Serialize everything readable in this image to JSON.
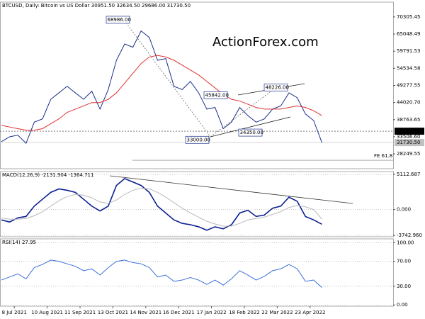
{
  "chart_data": [
    {
      "type": "line",
      "title": "BTCUSD, Daily:  Bitcoin vs US Dollar  30951.50 32634.50 29686.00 31730.50",
      "watermark": "ActionForex.com",
      "ylim": [
        23700,
        74850
      ],
      "yticks": [
        70305.45,
        65048.49,
        59791.53,
        54534.58,
        49277.55,
        {
          "value": 44020.7,
          "label": "44020.70"
        },
        38763.65,
        {
          "value": 33506.6,
          "label": "33506.60"
        },
        28249.55
      ],
      "series": [
        {
          "color": "#1a2f8a",
          "values": [
            32000,
            33500,
            34000,
            31500,
            38000,
            39000,
            45000,
            47000,
            49000,
            47000,
            45000,
            47500,
            42000,
            48000,
            57000,
            62000,
            61000,
            66000,
            64000,
            57000,
            57500,
            49000,
            48000,
            50500,
            47000,
            42000,
            42500,
            36000,
            38000,
            42500,
            40000,
            38000,
            39000,
            42000,
            43000,
            47000,
            45500,
            40500,
            38500,
            31730.5
          ]
        },
        {
          "color": "#e03030",
          "values": [
            37000,
            36500,
            36000,
            35500,
            35500,
            36000,
            37500,
            39000,
            41000,
            42000,
            43000,
            44000,
            44000,
            45000,
            47000,
            50000,
            53000,
            56000,
            58000,
            58500,
            58000,
            57000,
            55500,
            54000,
            52500,
            50500,
            48500,
            46500,
            45000,
            44500,
            43500,
            42500,
            42000,
            42000,
            42000,
            42500,
            43000,
            42500,
            41500,
            40000
          ]
        }
      ],
      "annotations": [
        {
          "value": 68986,
          "label": "68986.00"
        },
        {
          "value": 45842,
          "label": "45842.00"
        },
        {
          "value": 48226,
          "label": "48226.00"
        },
        {
          "value": 33000,
          "label": "33000.00"
        },
        {
          "value": 34350,
          "label": "34350.00"
        }
      ],
      "level_line": {
        "value": 35224,
        "label": "35224.00"
      },
      "last_price": {
        "value": 31730.5,
        "label": "31730.50"
      },
      "fe_line": {
        "value": 26300,
        "label": "FE 61.8"
      }
    },
    {
      "type": "line",
      "title": "MACD(12,26,9) -2131.904 -1364.711",
      "ylim": [
        -3950,
        5520
      ],
      "grid": true,
      "yticks": [
        5112.687,
        {
          "value": 0,
          "label": "0.000"
        },
        {
          "value": -3742.96,
          "label": "-3742.960"
        }
      ],
      "series": [
        {
          "color": "#0a1f8f",
          "values": [
            -1500,
            -1800,
            -1200,
            -1000,
            500,
            1500,
            2500,
            3000,
            2800,
            2500,
            1500,
            500,
            -200,
            500,
            3500,
            4500,
            4000,
            3500,
            2500,
            500,
            -500,
            -1500,
            -2000,
            -2200,
            -2500,
            -3000,
            -2500,
            -2800,
            -2200,
            -500,
            -100,
            -1000,
            -800,
            200,
            500,
            1800,
            1200,
            -1000,
            -1500,
            -2131.904
          ]
        },
        {
          "color": "#b8b8b8",
          "values": [
            -1200,
            -1400,
            -1400,
            -1300,
            -900,
            -300,
            500,
            1300,
            1900,
            2200,
            2100,
            1700,
            1100,
            900,
            1400,
            2200,
            2800,
            3100,
            3000,
            2500,
            1800,
            1000,
            200,
            -500,
            -1100,
            -1700,
            -2100,
            -2400,
            -2400,
            -2000,
            -1500,
            -1300,
            -1100,
            -700,
            -300,
            300,
            600,
            400,
            0,
            -1364.711
          ]
        }
      ]
    },
    {
      "type": "line",
      "title": "RSI(14) 27.95",
      "ylim": [
        -2,
        106
      ],
      "grid": true,
      "yticks": [
        {
          "value": 100,
          "label": "100.00"
        },
        {
          "value": 70,
          "label": "70.00"
        },
        {
          "value": 30,
          "label": "30.00"
        },
        {
          "value": 0,
          "label": "0.00"
        }
      ],
      "categories": [
        null,
        null,
        "8 Jul 2021",
        null,
        null,
        null,
        "10 Aug 2021",
        null,
        null,
        null,
        "11 Sep 2021",
        null,
        null,
        null,
        "13 Oct 2021",
        null,
        null,
        null,
        "14 Nov 2021",
        null,
        null,
        null,
        "16 Dec 2021",
        null,
        null,
        null,
        "17 Jan 2022",
        null,
        null,
        null,
        "18 Feb 2022",
        null,
        null,
        null,
        "22 Mar 2022",
        null,
        null,
        null,
        "23 Apr 2022",
        null
      ],
      "series": [
        {
          "color": "#3a6fd8",
          "values": [
            40,
            45,
            50,
            42,
            60,
            65,
            72,
            70,
            66,
            62,
            55,
            58,
            48,
            60,
            70,
            72,
            68,
            66,
            60,
            45,
            48,
            38,
            40,
            44,
            40,
            33,
            40,
            32,
            42,
            55,
            48,
            40,
            46,
            55,
            58,
            65,
            58,
            38,
            40,
            27.95
          ]
        }
      ]
    }
  ]
}
